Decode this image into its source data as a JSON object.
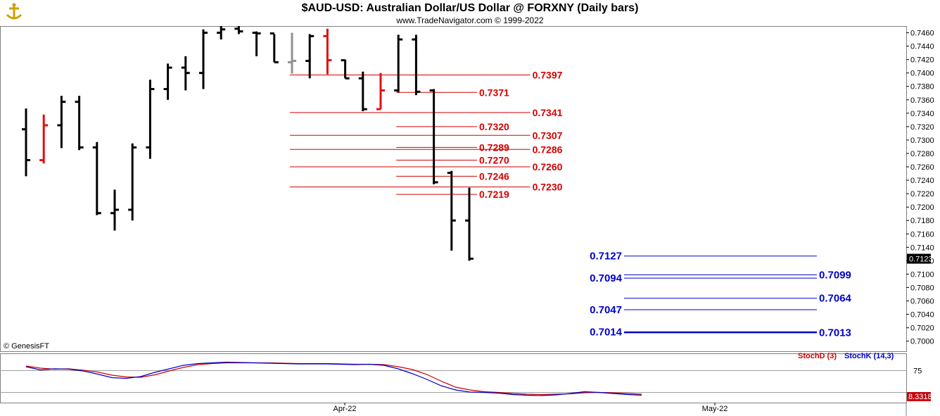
{
  "header": {
    "title": "$AUD-USD:  Australian Dollar/US Dollar @ FORXNY  (Daily bars)",
    "subtitle": "www.TradeNavigator.com © 1999-2022"
  },
  "credit": "© GenesisFT",
  "colors": {
    "bar": "#000000",
    "down_bar": "#e01010",
    "neutral_bar": "#909090",
    "resistance": "#d40000",
    "support": "#0000cc",
    "stoch_d": "#cc0000",
    "stoch_k": "#0000cc"
  },
  "chart_data": {
    "type": "ohlc",
    "ylim": [
      0.6985,
      0.747
    ],
    "y_ticks": [
      "0.7460",
      "0.7440",
      "0.7420",
      "0.7400",
      "0.7380",
      "0.7360",
      "0.7340",
      "0.7320",
      "0.7300",
      "0.7280",
      "0.7260",
      "0.7240",
      "0.7220",
      "0.7200",
      "0.7180",
      "0.7160",
      "0.7140",
      "0.7120",
      "0.7100",
      "0.7080",
      "0.7060",
      "0.7040",
      "0.7020",
      "0.7000"
    ],
    "last_price_label": "0.7123",
    "bars": [
      {
        "high": 0.7347,
        "low": 0.7246,
        "open": 0.7316,
        "close": 0.727,
        "color": "black"
      },
      {
        "high": 0.7338,
        "low": 0.7265,
        "open": 0.727,
        "close": 0.7322,
        "color": "red"
      },
      {
        "high": 0.7366,
        "low": 0.7288,
        "open": 0.7322,
        "close": 0.7357,
        "color": "black"
      },
      {
        "high": 0.7366,
        "low": 0.7285,
        "open": 0.7357,
        "close": 0.7289,
        "color": "black"
      },
      {
        "high": 0.7297,
        "low": 0.7188,
        "open": 0.7289,
        "close": 0.7191,
        "color": "black"
      },
      {
        "high": 0.7226,
        "low": 0.7165,
        "open": 0.7191,
        "close": 0.7196,
        "color": "black"
      },
      {
        "high": 0.7295,
        "low": 0.718,
        "open": 0.7196,
        "close": 0.7289,
        "color": "black"
      },
      {
        "high": 0.739,
        "low": 0.7272,
        "open": 0.7289,
        "close": 0.7376,
        "color": "black"
      },
      {
        "high": 0.7414,
        "low": 0.736,
        "open": 0.7376,
        "close": 0.7408,
        "color": "black"
      },
      {
        "high": 0.7425,
        "low": 0.7374,
        "open": 0.7408,
        "close": 0.74,
        "color": "black"
      },
      {
        "high": 0.7465,
        "low": 0.7376,
        "open": 0.74,
        "close": 0.746,
        "color": "black"
      },
      {
        "high": 0.747,
        "low": 0.745,
        "open": 0.746,
        "close": 0.7465,
        "color": "black"
      },
      {
        "high": 0.747,
        "low": 0.7458,
        "open": 0.7466,
        "close": 0.7462,
        "color": "black"
      },
      {
        "high": 0.7462,
        "low": 0.7425,
        "open": 0.746,
        "close": 0.7459,
        "color": "black"
      },
      {
        "high": 0.7458,
        "low": 0.7416,
        "open": 0.7459,
        "close": 0.7416,
        "color": "black"
      },
      {
        "high": 0.746,
        "low": 0.7399,
        "open": 0.7416,
        "close": 0.7418,
        "color": "gray"
      },
      {
        "high": 0.7458,
        "low": 0.7392,
        "open": 0.7418,
        "close": 0.7455,
        "color": "black"
      },
      {
        "high": 0.7466,
        "low": 0.7398,
        "open": 0.7455,
        "close": 0.7419,
        "color": "red"
      },
      {
        "high": 0.742,
        "low": 0.7392,
        "open": 0.7419,
        "close": 0.7392,
        "color": "black"
      },
      {
        "high": 0.7402,
        "low": 0.7343,
        "open": 0.7392,
        "close": 0.7346,
        "color": "black"
      },
      {
        "high": 0.74,
        "low": 0.7346,
        "open": 0.7346,
        "close": 0.7374,
        "color": "red"
      },
      {
        "high": 0.7457,
        "low": 0.7371,
        "open": 0.7374,
        "close": 0.745,
        "color": "black"
      },
      {
        "high": 0.7457,
        "low": 0.7367,
        "open": 0.745,
        "close": 0.7372,
        "color": "black"
      },
      {
        "high": 0.7376,
        "low": 0.7234,
        "open": 0.7374,
        "close": 0.7237,
        "color": "black"
      },
      {
        "high": 0.7254,
        "low": 0.7135,
        "open": 0.7251,
        "close": 0.718,
        "color": "black"
      },
      {
        "high": 0.7229,
        "low": 0.712,
        "open": 0.718,
        "close": 0.7123,
        "color": "black"
      }
    ],
    "resistance_levels": [
      {
        "value": 0.7397,
        "label": "0.7397",
        "from_bar": 15,
        "to_bar": 28
      },
      {
        "value": 0.7371,
        "label": "0.7371",
        "from_bar": 21,
        "to_bar": 25
      },
      {
        "value": 0.7341,
        "label": "0.7341",
        "from_bar": 15,
        "to_bar": 28
      },
      {
        "value": 0.732,
        "label": "0.7320",
        "from_bar": 21,
        "to_bar": 25
      },
      {
        "value": 0.7307,
        "label": "0.7307",
        "from_bar": 15,
        "to_bar": 28
      },
      {
        "value": 0.7289,
        "label": "0.7289",
        "from_bar": 21,
        "to_bar": 25
      },
      {
        "value": 0.7286,
        "label": "0.7286",
        "from_bar": 15,
        "to_bar": 28
      },
      {
        "value": 0.727,
        "label": "0.7270",
        "from_bar": 21,
        "to_bar": 25
      },
      {
        "value": 0.726,
        "label": "0.7260",
        "from_bar": 15,
        "to_bar": 28
      },
      {
        "value": 0.7246,
        "label": "0.7246",
        "from_bar": 21,
        "to_bar": 25
      },
      {
        "value": 0.723,
        "label": "0.7230",
        "from_bar": 15,
        "to_bar": 28
      },
      {
        "value": 0.7219,
        "label": "0.7219",
        "from_bar": 21,
        "to_bar": 25
      }
    ],
    "support_levels": [
      {
        "value": 0.7127,
        "label": "0.7127",
        "side": "left"
      },
      {
        "value": 0.7099,
        "label": "0.7099",
        "side": "right"
      },
      {
        "value": 0.7094,
        "label": "0.7094",
        "side": "left"
      },
      {
        "value": 0.7064,
        "label": "0.7064",
        "side": "right"
      },
      {
        "value": 0.7047,
        "label": "0.7047",
        "side": "left"
      },
      {
        "value": 0.7014,
        "label": "0.7014",
        "side": "left"
      },
      {
        "value": 0.7013,
        "label": "0.7013",
        "side": "right"
      }
    ],
    "x_labels": [
      "Apr-22",
      "May-22"
    ],
    "stochastic": {
      "legend_d": "StochD (3)",
      "legend_k": "StochK (14,3)",
      "tick_label": "75",
      "last_value_label": "8.3318",
      "ylim": [
        0,
        100
      ],
      "k": [
        86,
        77,
        80,
        79,
        74,
        65,
        55,
        53,
        58,
        70,
        80,
        90,
        95,
        97,
        99,
        98,
        97,
        96,
        95,
        94,
        94,
        94,
        93,
        92,
        93,
        90,
        80,
        66,
        50,
        32,
        20,
        14,
        13,
        11,
        7,
        5,
        4,
        6,
        10,
        15,
        13,
        10,
        7,
        5
      ],
      "d": [
        88,
        82,
        79,
        80,
        76,
        71,
        62,
        57,
        56,
        63,
        74,
        84,
        92,
        95,
        97,
        97,
        97,
        97,
        96,
        95,
        95,
        95,
        94,
        93,
        93,
        92,
        86,
        78,
        64,
        45,
        28,
        20,
        15,
        13,
        10,
        8,
        7,
        8,
        9,
        12,
        13,
        12,
        10,
        8
      ]
    }
  }
}
